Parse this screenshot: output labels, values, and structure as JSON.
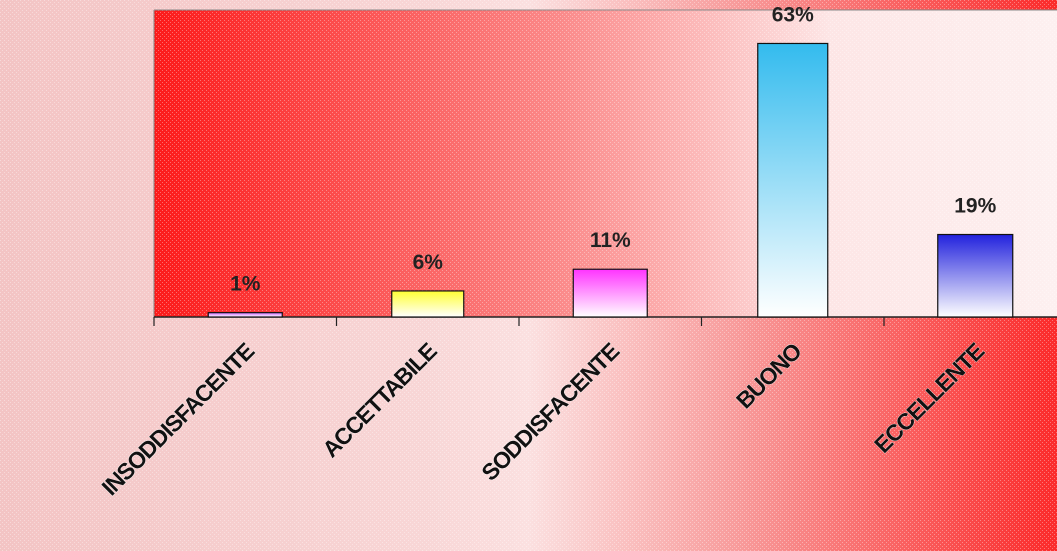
{
  "chart_data": {
    "type": "bar",
    "title": "",
    "xlabel": "",
    "ylabel": "",
    "categories": [
      "INSODDISFACENTE",
      "ACCETTABILE",
      "SODDISFACENTE",
      "BUONO",
      "ECCELLENTE"
    ],
    "values": [
      1,
      6,
      11,
      63,
      19
    ],
    "data_labels": [
      "1%",
      "6%",
      "11%",
      "63%",
      "19%"
    ],
    "unit": "%",
    "ylim": [
      0,
      70
    ],
    "grid": false,
    "legend": "none",
    "bar_colors": [
      "#cc66ff",
      "#ffff33",
      "#ff33ff",
      "#33bbee",
      "#2222dd"
    ]
  }
}
